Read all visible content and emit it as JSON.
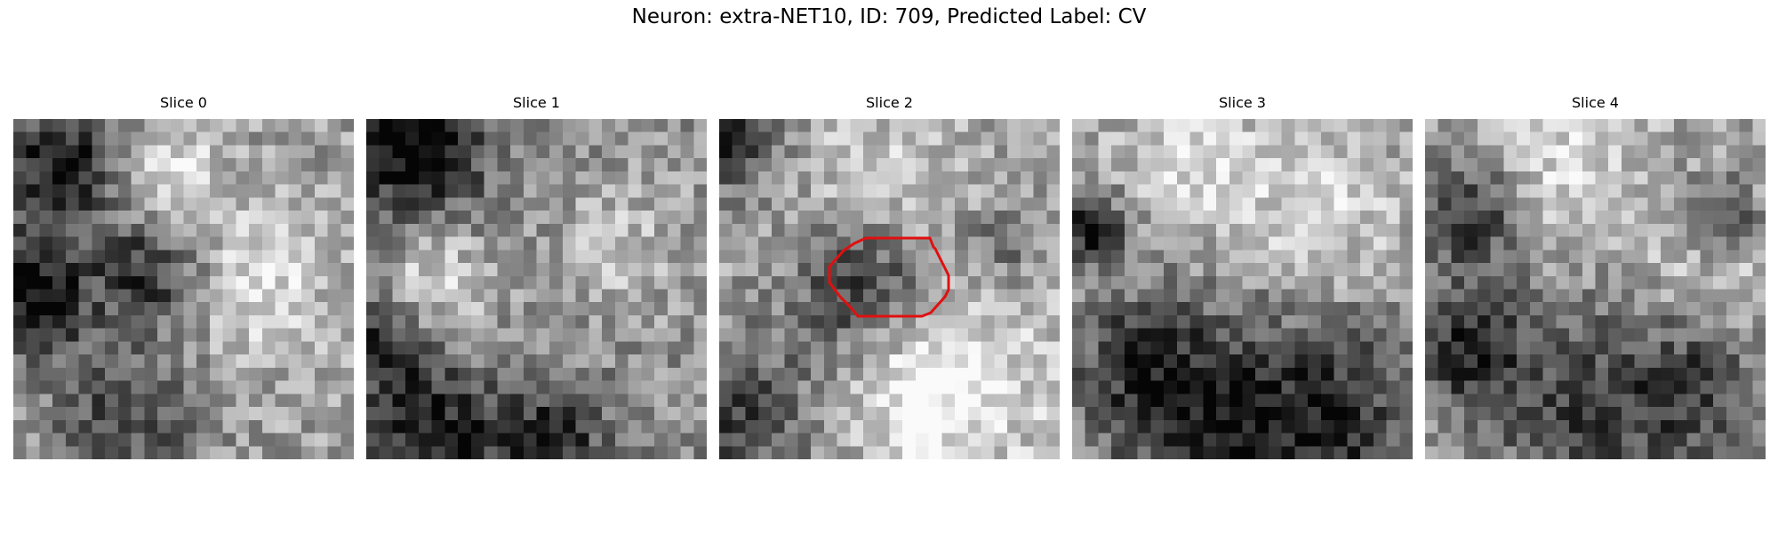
{
  "figure": {
    "title": "Neuron: extra-NET10, ID: 709, Predicted Label: CV"
  },
  "panels": [
    {
      "title": "Slice 0",
      "roi": false
    },
    {
      "title": "Slice 1",
      "roi": false
    },
    {
      "title": "Slice 2",
      "roi": true
    },
    {
      "title": "Slice 3",
      "roi": false
    },
    {
      "title": "Slice 4",
      "roi": false
    }
  ],
  "roi_color": "#e01010"
}
